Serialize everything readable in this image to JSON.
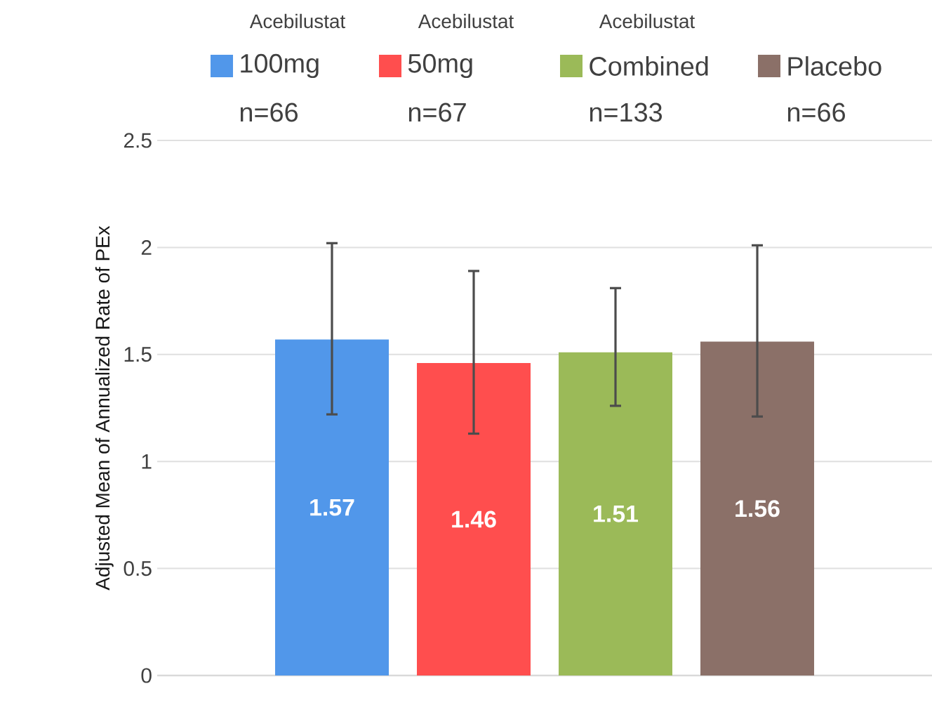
{
  "chart_data": {
    "type": "bar",
    "ylabel": "Adjusted Mean of Annualized Rate of PEx",
    "categories": [
      null
    ],
    "series": [
      {
        "name": "100mg",
        "color": "#5197ea",
        "values": [
          1.57
        ],
        "errors": [
          [
            1.22,
            2.02
          ]
        ]
      },
      {
        "name": "50mg",
        "color": "#ff4e4e",
        "values": [
          1.46
        ],
        "errors": [
          [
            1.13,
            1.89
          ]
        ]
      },
      {
        "name": "Combined",
        "color": "#9bba58",
        "values": [
          1.51
        ],
        "errors": [
          [
            1.26,
            1.81
          ]
        ]
      },
      {
        "name": "Placebo",
        "color": "#8b7068",
        "values": [
          1.56
        ],
        "errors": [
          [
            1.21,
            2.01
          ]
        ]
      }
    ],
    "annotations": [
      "Acebilustat",
      "Acebilustat",
      "Acebilustat",
      "n=66",
      "n=67",
      "n=133",
      "n=66"
    ],
    "ylim": [
      0,
      2.5
    ],
    "yticks": [
      0,
      0.5,
      1,
      1.5,
      2,
      2.5
    ],
    "grid": "y",
    "legend": "top",
    "data_labels": true
  }
}
